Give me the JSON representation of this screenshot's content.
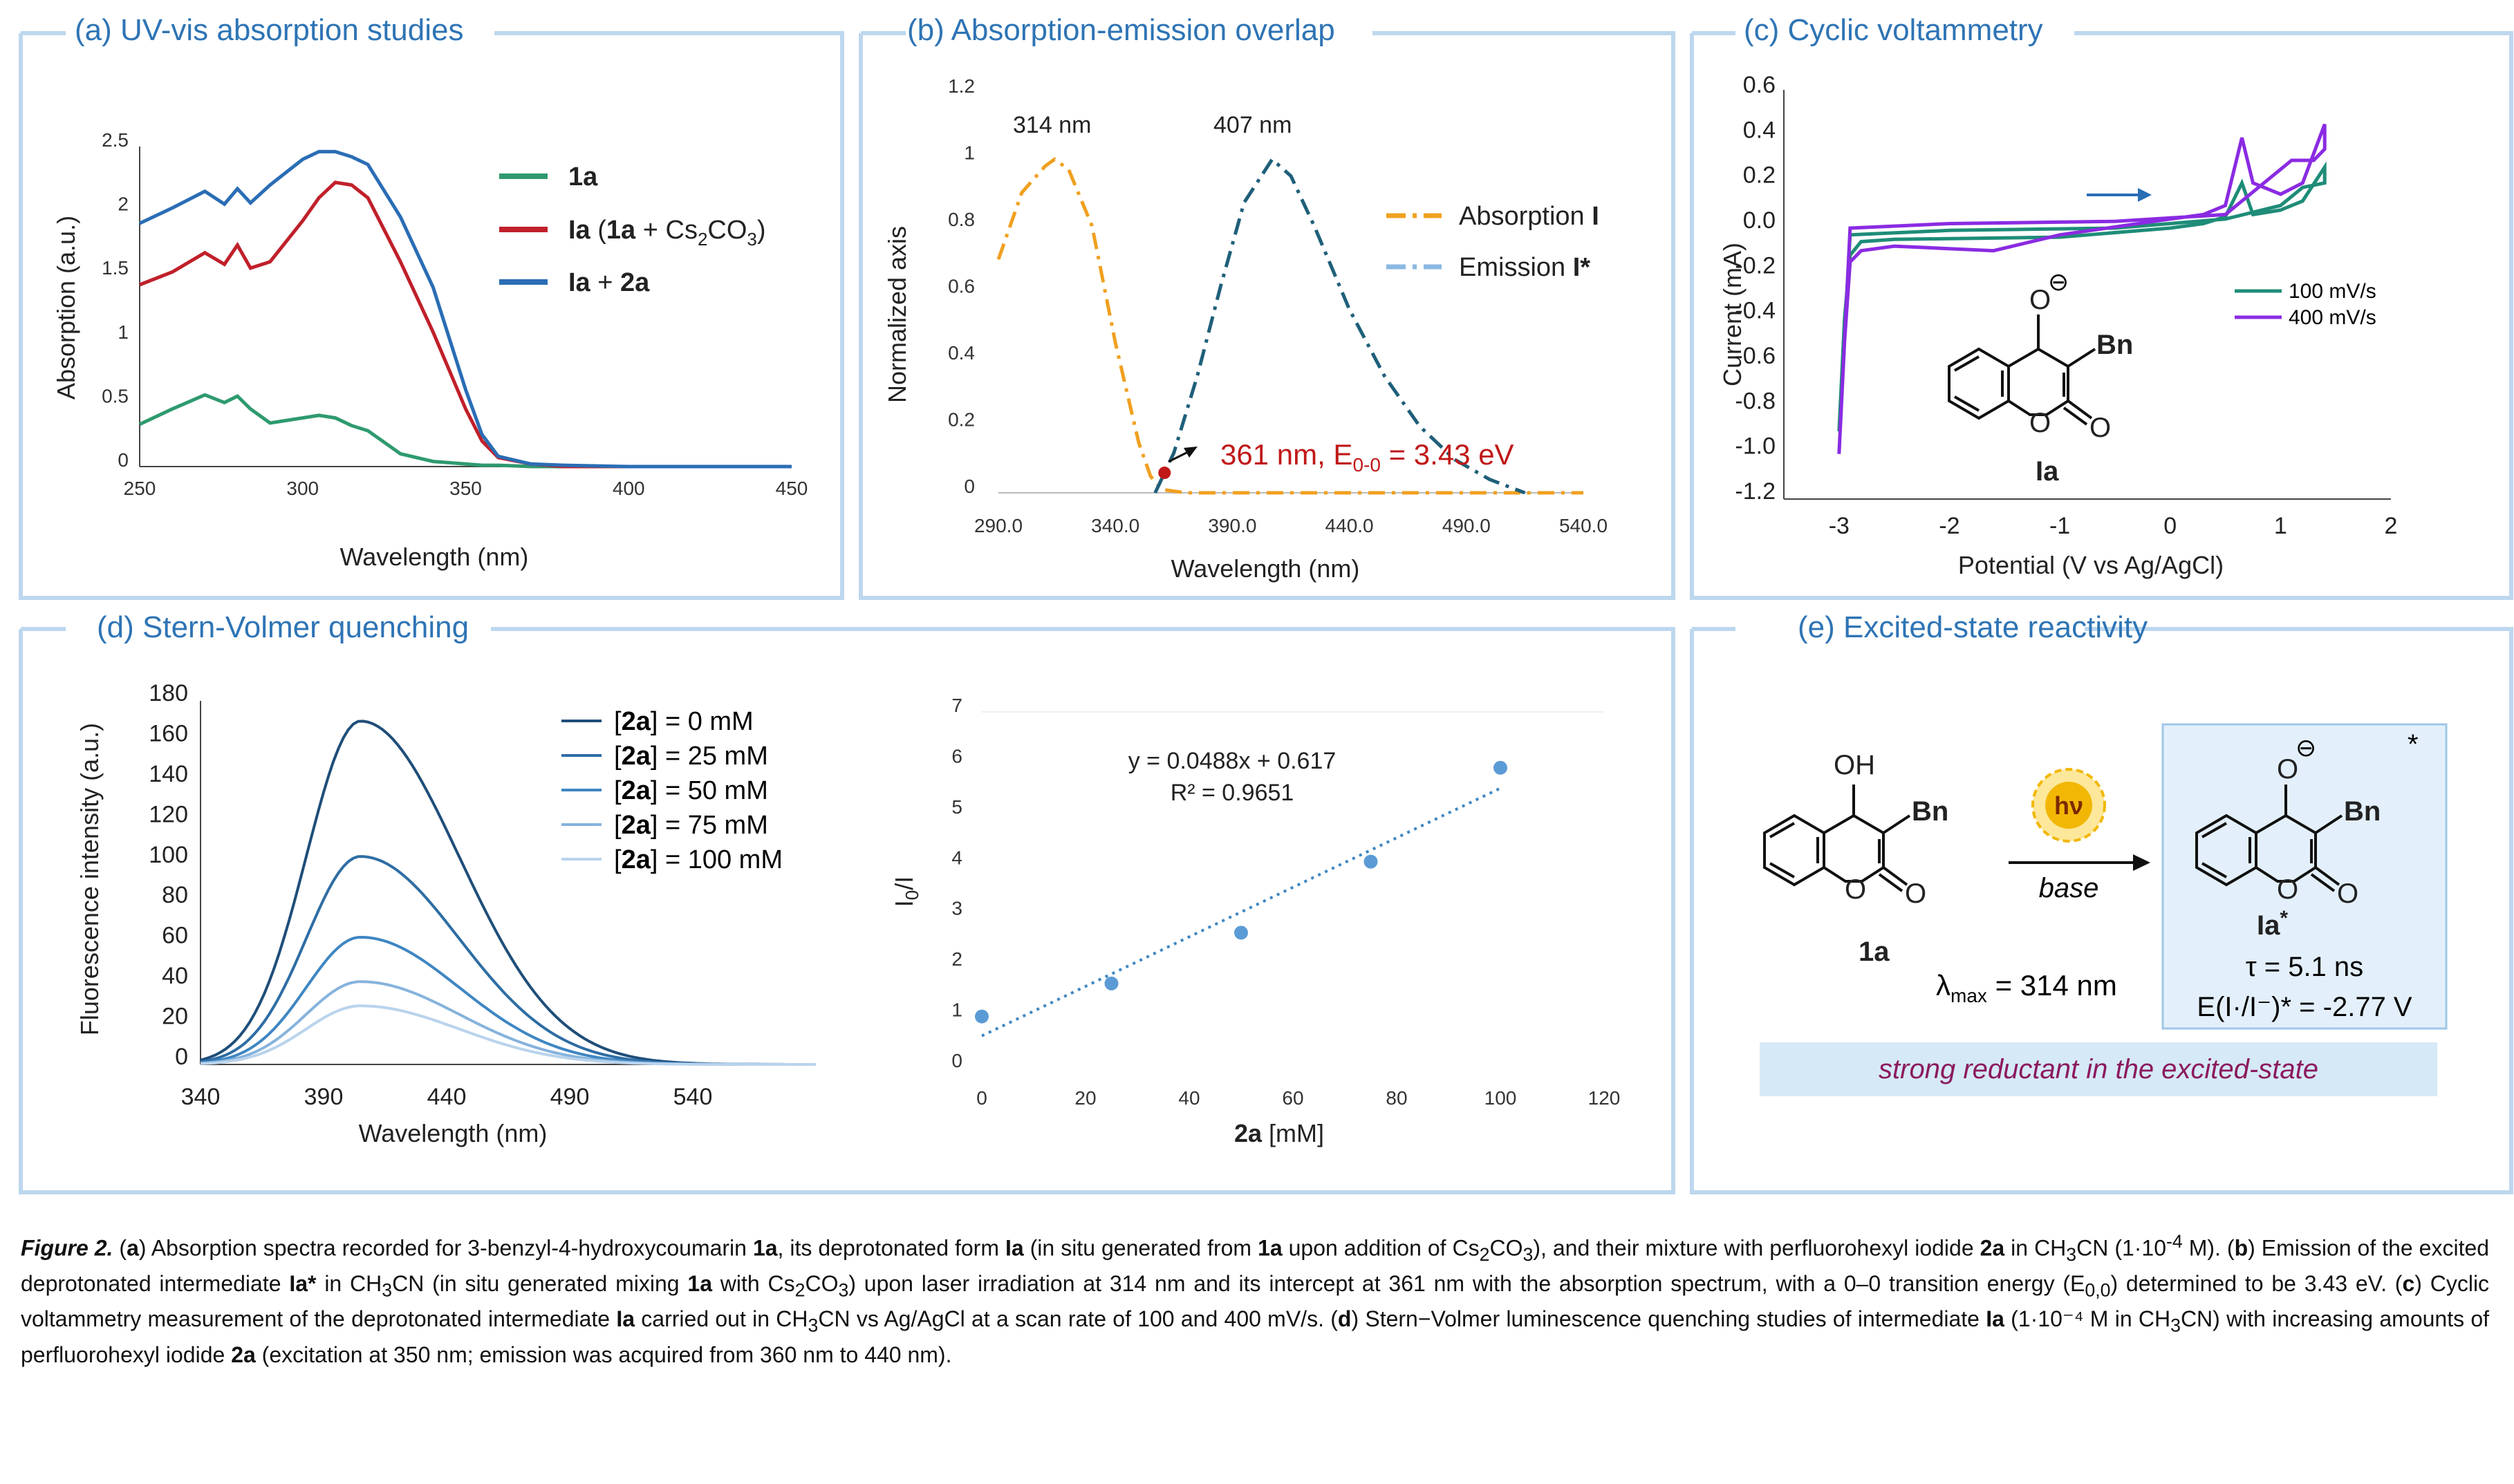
{
  "panels": {
    "a": {
      "title": "(a) UV-vis absorption studies",
      "chart_data": {
        "type": "line",
        "title": "(a) UV-vis absorption studies",
        "xlabel": "Wavelength (nm)",
        "ylabel": "Absorption (a.u.)",
        "xlim": [
          250,
          450
        ],
        "ylim": [
          0,
          2.5
        ],
        "xticks": [
          "250",
          "300",
          "350",
          "400",
          "450"
        ],
        "yticks": [
          "0",
          "0.5",
          "1",
          "1.5",
          "2",
          "2.5"
        ],
        "x": [
          250,
          260,
          270,
          276,
          280,
          284,
          290,
          300,
          305,
          310,
          315,
          320,
          330,
          340,
          350,
          355,
          360,
          370,
          380,
          400,
          450
        ],
        "series": [
          {
            "name": "1a",
            "color": "#2e9a6e",
            "values": [
              0.33,
              0.45,
              0.56,
              0.5,
              0.55,
              0.45,
              0.34,
              0.38,
              0.4,
              0.38,
              0.32,
              0.28,
              0.1,
              0.04,
              0.02,
              0.01,
              0.01,
              0.0,
              0.0,
              0.0,
              0.0
            ]
          },
          {
            "name": "Ia (1a + Cs2CO3)",
            "color": "#c0202a",
            "values": [
              1.42,
              1.52,
              1.67,
              1.58,
              1.73,
              1.55,
              1.6,
              1.92,
              2.1,
              2.22,
              2.2,
              2.1,
              1.6,
              1.05,
              0.45,
              0.2,
              0.07,
              0.02,
              0.0,
              0.0,
              0.0
            ]
          },
          {
            "name": "Ia + 2a",
            "color": "#2a6db5",
            "values": [
              1.9,
              2.02,
              2.15,
              2.05,
              2.17,
              2.06,
              2.2,
              2.4,
              2.46,
              2.46,
              2.42,
              2.36,
              1.95,
              1.4,
              0.6,
              0.25,
              0.08,
              0.02,
              0.01,
              0.0,
              0.0
            ]
          }
        ]
      },
      "legend": {
        "l1": "1a",
        "l2_a": "Ia",
        "l2_b": "(",
        "l2_c": "1a",
        "l2_d": " + Cs",
        "l2_sub1": "2",
        "l2_e": "CO",
        "l2_sub2": "3",
        "l2_f": ")",
        "l3_a": "Ia",
        "l3_b": " + ",
        "l3_c": "2a"
      }
    },
    "b": {
      "title": "(b) Absorption-emission overlap",
      "chart_data": {
        "type": "line",
        "title": "(b) Absorption-emission overlap",
        "xlabel": "Wavelength (nm)",
        "ylabel": "Normalized axis",
        "xlim": [
          290,
          540
        ],
        "ylim": [
          0,
          1.2
        ],
        "xticks": [
          "290.0",
          "340.0",
          "390.0",
          "440.0",
          "490.0",
          "540.0"
        ],
        "yticks": [
          "0",
          "0.2",
          "0.4",
          "0.6",
          "0.8",
          "1",
          "1.2"
        ],
        "series": [
          {
            "name": "Absorption I",
            "color": "#f0a020",
            "x": [
              290,
              300,
              310,
              314,
              320,
              330,
              340,
              350,
              355,
              360,
              370,
              400,
              450,
              500,
              540
            ],
            "values": [
              0.7,
              0.9,
              0.98,
              1.0,
              0.97,
              0.8,
              0.45,
              0.15,
              0.05,
              0.01,
              0.0,
              0.0,
              0.0,
              0.0,
              0.0
            ]
          },
          {
            "name": "Emission I*",
            "color": "#1f5f7a",
            "x": [
              357,
              365,
              375,
              385,
              395,
              407,
              415,
              425,
              440,
              455,
              470,
              485,
              500,
              515
            ],
            "values": [
              0.0,
              0.12,
              0.35,
              0.62,
              0.87,
              1.0,
              0.95,
              0.8,
              0.55,
              0.35,
              0.2,
              0.1,
              0.04,
              0.0
            ]
          }
        ],
        "annotations": [
          "314 nm",
          "407 nm",
          "361 nm, E0-0 = 3.43 eV"
        ]
      },
      "labels": {
        "peak1": "314 nm",
        "peak2": "407 nm",
        "intercept_a": "361 nm, E",
        "intercept_sub": "0-0",
        "intercept_b": " = 3.43 eV",
        "leg1_a": "Absorption ",
        "leg1_b": "I",
        "leg2_a": "Emission ",
        "leg2_b": "I*"
      }
    },
    "c": {
      "title": "(c) Cyclic voltammetry",
      "chart_data": {
        "type": "line",
        "title": "(c) Cyclic voltammetry",
        "xlabel": "Potential (V vs Ag/AgCl)",
        "ylabel": "Current (mA)",
        "xlim": [
          -3.5,
          2
        ],
        "ylim": [
          -1.2,
          0.6
        ],
        "xticks": [
          "-3",
          "-2",
          "-1",
          "0",
          "1",
          "2"
        ],
        "yticks": [
          "0.6",
          "0.4",
          "0.2",
          "0.0",
          "-0.2",
          "-0.4",
          "-0.6",
          "-0.8",
          "-1.0",
          "-1.2"
        ],
        "series": [
          {
            "name": "100 mV/s",
            "color": "#1e8c78",
            "x": [
              -3.0,
              -2.95,
              -2.9,
              -2.8,
              -2.5,
              -1.0,
              0.0,
              0.3,
              0.5,
              0.65,
              0.75,
              1.0,
              1.2,
              1.4,
              1.4,
              1.2,
              1.0,
              0.5,
              -0.5,
              -2.0,
              -2.9,
              -3.0
            ],
            "values": [
              -0.9,
              -0.4,
              -0.12,
              -0.06,
              -0.05,
              -0.04,
              0.0,
              0.02,
              0.05,
              0.2,
              0.06,
              0.08,
              0.12,
              0.27,
              0.2,
              0.18,
              0.1,
              0.04,
              0.0,
              -0.01,
              -0.03,
              -0.9
            ]
          },
          {
            "name": "400 mV/s",
            "color": "#8a2be2",
            "x": [
              -3.0,
              -2.95,
              -2.9,
              -2.8,
              -2.5,
              -1.6,
              -1.0,
              0.0,
              0.3,
              0.5,
              0.65,
              0.75,
              1.0,
              1.2,
              1.4,
              1.4,
              1.3,
              1.1,
              0.5,
              -0.5,
              -2.0,
              -2.9,
              -3.0
            ],
            "values": [
              -1.0,
              -0.5,
              -0.15,
              -0.1,
              -0.08,
              -0.1,
              -0.03,
              0.04,
              0.06,
              0.1,
              0.4,
              0.2,
              0.15,
              0.2,
              0.46,
              0.35,
              0.3,
              0.3,
              0.06,
              0.03,
              0.02,
              0.0,
              -1.0
            ]
          }
        ]
      },
      "legend": {
        "l1": "100 mV/s",
        "l2": "400 mV/s"
      },
      "molecule_label": "Ia",
      "atoms": {
        "o_minus": "O",
        "bn": "Bn",
        "o_ring": "O",
        "o_carbonyl": "O",
        "charge": "⊖"
      }
    },
    "d": {
      "title": "(d) Stern-Volmer quenching",
      "chart_data": [
        {
          "type": "line",
          "xlabel": "Wavelength (nm)",
          "ylabel": "Fluorescence intensity (a.u.)",
          "xlim": [
            340,
            590
          ],
          "ylim": [
            0,
            180
          ],
          "xticks": [
            "340",
            "390",
            "440",
            "490",
            "540"
          ],
          "yticks": [
            "0",
            "20",
            "40",
            "60",
            "80",
            "100",
            "120",
            "140",
            "160",
            "180"
          ],
          "peak_x": 405,
          "series": [
            {
              "name": "[2a] = 0 mM",
              "color": "#1f4e79",
              "peak": 170
            },
            {
              "name": "[2a] = 25 mM",
              "color": "#2e6da4",
              "peak": 103
            },
            {
              "name": "[2a] = 50 mM",
              "color": "#3e86c2",
              "peak": 63
            },
            {
              "name": "[2a] = 75 mM",
              "color": "#86b3dc",
              "peak": 41
            },
            {
              "name": "[2a] = 100 mM",
              "color": "#b9d3ec",
              "peak": 29
            }
          ]
        },
        {
          "type": "scatter",
          "xlabel": "2a [mM]",
          "ylabel": "I0/I",
          "xlim": [
            0,
            120
          ],
          "ylim": [
            0,
            7
          ],
          "xticks": [
            "0",
            "20",
            "40",
            "60",
            "80",
            "100",
            "120"
          ],
          "yticks": [
            "0",
            "1",
            "2",
            "3",
            "4",
            "5",
            "6",
            "7"
          ],
          "x": [
            0,
            25,
            50,
            75,
            100
          ],
          "values": [
            1.0,
            1.65,
            2.65,
            4.05,
            5.9
          ],
          "trendline": {
            "slope": 0.0488,
            "intercept": 0.617
          },
          "equation": "y = 0.0488x + 0.617",
          "r2": "R² = 0.9651"
        }
      ],
      "legend": [
        {
          "pre": "[",
          "bold": "2a",
          "post": "] = 0 mM"
        },
        {
          "pre": "[",
          "bold": "2a",
          "post": "] = 25 mM"
        },
        {
          "pre": "[",
          "bold": "2a",
          "post": "] = 50 mM"
        },
        {
          "pre": "[",
          "bold": "2a",
          "post": "] = 75 mM"
        },
        {
          "pre": "[",
          "bold": "2a",
          "post": "] = 100 mM"
        }
      ],
      "scatter_labels": {
        "equation": "y = 0.0488x + 0.617",
        "r2": "R² = 0.9651",
        "ylabel_a": "I",
        "ylabel_sub": "0",
        "ylabel_b": "/I",
        "xlabel_a": "2a",
        "xlabel_b": " [mM]"
      }
    },
    "e": {
      "title": "(e) Excited-state reactivity",
      "reactant_label": "1a",
      "reactant_atoms": {
        "oh": "OH",
        "bn": "Bn",
        "o_ring": "O",
        "o_carbonyl": "O"
      },
      "hv": "hν",
      "condition": "base",
      "lambda_a": "λ",
      "lambda_sub": "max",
      "lambda_b": " = 314 nm",
      "product_label": "Ia",
      "product_sup": "*",
      "product_atoms": {
        "o_minus": "O",
        "bn": "Bn",
        "o_ring": "O",
        "o_carbonyl": "O",
        "charge": "⊖",
        "star": "*"
      },
      "tau": "τ = 5.1 ns",
      "potential": "E(I·/I⁻)* = -2.77 V",
      "banner": "strong reductant in the excited-state"
    }
  },
  "colors": {
    "frame": "#bdd7ee",
    "title": "#2e74b5",
    "highlight_box": "#e3f0fb",
    "banner_bg": "#d6e9f7",
    "banner_text": "#8b1a5e",
    "bn": "#a0195e",
    "intercept": "#c01818",
    "sun": "#f2b705"
  },
  "caption": {
    "fig": "Figure 2.",
    "a_lbl": "a",
    "a_text1": ") Absorption spectra recorded for 3-benzyl-4-hydroxycoumarin ",
    "a_1a": "1a",
    "a_text2": ", its deprotonated form ",
    "a_Ia": "Ia",
    "a_text3": " (in situ generated from ",
    "a_1a2": "1a",
    "a_text4": " upon addition of Cs",
    "a_sub1": "2",
    "a_text5": "CO",
    "a_sub2": "3",
    "a_text6": "), and their mixture with perfluorohexyl iodide ",
    "a_2a": "2a",
    "a_text7": " in CH",
    "a_sub3": "3",
    "a_text8": "CN (1·10",
    "a_sup1": "-4",
    "a_text9": " M). (",
    "b_lbl": "b",
    "b_text1": ") Emission of the excited deprotonated intermediate ",
    "b_Ia": "Ia*",
    "b_text2": " in CH",
    "b_sub1": "3",
    "b_text3": "CN (in situ generated mixing ",
    "b_1a": "1a",
    "b_text4": " with Cs",
    "b_sub2": "2",
    "b_text5": "CO",
    "b_sub3": "3",
    "b_text6": ") upon laser irradiation at 314 nm and its intercept at 361 nm with the absorption spectrum, with a 0–0 transition energy (E",
    "b_sub4": "0,0",
    "b_text7": ") determined to be 3.43 eV. (",
    "c_lbl": "c",
    "c_text1": ") Cyclic voltammetry measurement of the deprotonated intermediate ",
    "c_Ia": "Ia",
    "c_text2": " carried out in CH",
    "c_sub1": "3",
    "c_text3": "CN vs Ag/AgCl at a scan rate of 100 and 400 mV/s. (",
    "d_lbl": "d",
    "d_text1": ") Stern−Volmer luminescence quenching studies of intermediate ",
    "d_Ia": "Ia",
    "d_text2": " (1·10⁻⁴ M in CH",
    "d_sub1": "3",
    "d_text3": "CN) with increasing amounts of perfluorohexyl iodide ",
    "d_2a": "2a",
    "d_text4": " (excitation at 350 nm; emission was acquired from 360 nm to 440 nm)."
  }
}
